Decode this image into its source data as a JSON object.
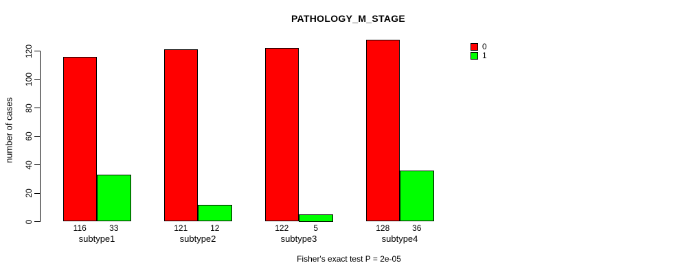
{
  "chart_data": {
    "type": "bar",
    "title": "PATHOLOGY_M_STAGE",
    "categories": [
      "subtype1",
      "subtype2",
      "subtype3",
      "subtype4"
    ],
    "series": [
      {
        "name": "0",
        "color": "#FF0000",
        "values": [
          116,
          121,
          122,
          128
        ]
      },
      {
        "name": "1",
        "color": "#00FF00",
        "values": [
          33,
          12,
          5,
          36
        ]
      }
    ],
    "ylabel": "number of cases",
    "xlabel": "",
    "ylim": [
      0,
      120
    ],
    "yticks": [
      0,
      20,
      40,
      60,
      80,
      100,
      120
    ],
    "grid": false,
    "legend_position": "top-right",
    "bar_value_labels_shown": true,
    "annotation": "Fisher's exact test P = 2e-05"
  },
  "colors": {
    "background": "#FFFFFF",
    "axis": "#000000",
    "bar_border": "#000000",
    "series_0": "#FF0000",
    "series_1": "#00FF00"
  }
}
